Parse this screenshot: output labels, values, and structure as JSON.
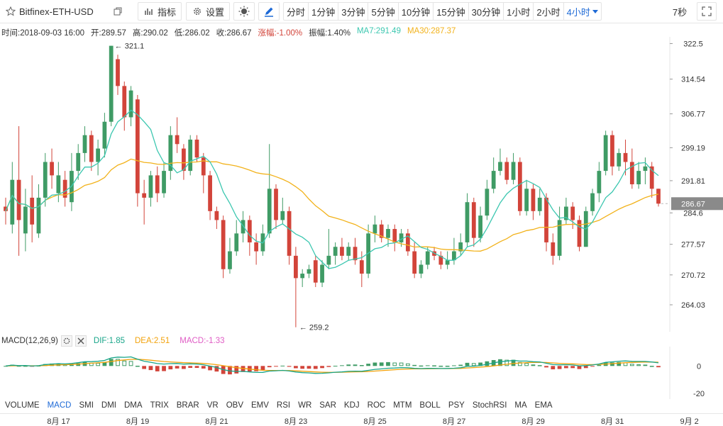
{
  "toolbar": {
    "symbol": "Bitfinex-ETH-USD",
    "indicator_label": "指标",
    "settings_label": "设置",
    "intervals": [
      "分时",
      "1分钟",
      "3分钟",
      "5分钟",
      "10分钟",
      "15分钟",
      "30分钟",
      "1小时",
      "2小时",
      "4小时"
    ],
    "active_interval": "4小时",
    "countdown": "7秒"
  },
  "info": {
    "time": "时间:2018-09-03 16:00",
    "open": "开:289.57",
    "high": "高:290.02",
    "low": "低:286.02",
    "close": "收:286.67",
    "change": "涨幅:-1.00%",
    "amplitude": "振幅:1.40%",
    "ma7": "MA7:291.49",
    "ma30": "MA30:287.37"
  },
  "colors": {
    "up": "#3f9b65",
    "down": "#d2443a",
    "ma7": "#3cc7b0",
    "ma30": "#f2b21b",
    "dif": "#17a589",
    "dea": "#f2a20b",
    "macd": "#e05cc5",
    "accent": "#1e6ad6"
  },
  "price_axis": {
    "ticks": [
      "322.5",
      "314.54",
      "306.77",
      "299.19",
      "291.81",
      "284.6",
      "277.57",
      "270.72",
      "264.03"
    ],
    "current": "286.67",
    "max_label": "321.1",
    "min_label": "259.2"
  },
  "macd": {
    "title": "MACD(12,26,9)",
    "dif": "DIF:1.85",
    "dea": "DEA:2.51",
    "macd": "MACD:-1.33",
    "ticks": [
      "0",
      "-20"
    ]
  },
  "indicators": [
    "VOLUME",
    "MACD",
    "SMI",
    "DMI",
    "DMA",
    "TRIX",
    "BRAR",
    "VR",
    "OBV",
    "EMV",
    "RSI",
    "WR",
    "SAR",
    "KDJ",
    "ROC",
    "MTM",
    "BOLL",
    "PSY",
    "StochRSI",
    "MA",
    "EMA"
  ],
  "active_indicator": "MACD",
  "dates": [
    "8月 17",
    "8月 19",
    "8月 21",
    "8月 23",
    "8月 25",
    "8月 27",
    "8月 29",
    "8月 31",
    "9月 2"
  ],
  "chart_data": {
    "type": "candlestick",
    "title": "Bitfinex-ETH-USD",
    "interval": "4小时",
    "ylim": [
      258,
      324
    ],
    "candles": [
      {
        "o": 286,
        "c": 285,
        "h": 288,
        "l": 282
      },
      {
        "o": 282,
        "c": 292,
        "h": 296,
        "l": 280
      },
      {
        "o": 292,
        "c": 283,
        "h": 304,
        "l": 275
      },
      {
        "o": 280,
        "c": 286,
        "h": 290,
        "l": 276
      },
      {
        "o": 288,
        "c": 282,
        "h": 293,
        "l": 278
      },
      {
        "o": 280,
        "c": 288,
        "h": 291,
        "l": 279
      },
      {
        "o": 288,
        "c": 296,
        "h": 298,
        "l": 286
      },
      {
        "o": 296,
        "c": 293,
        "h": 299,
        "l": 290
      },
      {
        "o": 289,
        "c": 293,
        "h": 296,
        "l": 287
      },
      {
        "o": 292,
        "c": 288,
        "h": 294,
        "l": 286
      },
      {
        "o": 287,
        "c": 294,
        "h": 298,
        "l": 285
      },
      {
        "o": 294,
        "c": 298,
        "h": 300,
        "l": 292
      },
      {
        "o": 298,
        "c": 302,
        "h": 304,
        "l": 296
      },
      {
        "o": 302,
        "c": 296,
        "h": 303,
        "l": 294
      },
      {
        "o": 296,
        "c": 299,
        "h": 301,
        "l": 293
      },
      {
        "o": 299,
        "c": 305,
        "h": 307,
        "l": 297
      },
      {
        "o": 305,
        "c": 322,
        "h": 322,
        "l": 304
      },
      {
        "o": 319,
        "c": 313,
        "h": 320,
        "l": 311
      },
      {
        "o": 313,
        "c": 306,
        "h": 314,
        "l": 303
      },
      {
        "o": 306,
        "c": 312,
        "h": 313,
        "l": 304
      },
      {
        "o": 310,
        "c": 289,
        "h": 311,
        "l": 286
      },
      {
        "o": 289,
        "c": 288,
        "h": 292,
        "l": 282
      },
      {
        "o": 288,
        "c": 293,
        "h": 294,
        "l": 286
      },
      {
        "o": 293,
        "c": 289,
        "h": 295,
        "l": 287
      },
      {
        "o": 289,
        "c": 294,
        "h": 296,
        "l": 288
      },
      {
        "o": 294,
        "c": 302,
        "h": 304,
        "l": 292
      },
      {
        "o": 302,
        "c": 300,
        "h": 306,
        "l": 298
      },
      {
        "o": 299,
        "c": 294,
        "h": 300,
        "l": 292
      },
      {
        "o": 294,
        "c": 301,
        "h": 302,
        "l": 293
      },
      {
        "o": 301,
        "c": 297,
        "h": 302,
        "l": 296
      },
      {
        "o": 297,
        "c": 293,
        "h": 298,
        "l": 289
      },
      {
        "o": 293,
        "c": 285,
        "h": 294,
        "l": 283
      },
      {
        "o": 285,
        "c": 283,
        "h": 286,
        "l": 281
      },
      {
        "o": 283,
        "c": 272,
        "h": 284,
        "l": 270
      },
      {
        "o": 272,
        "c": 276,
        "h": 279,
        "l": 271
      },
      {
        "o": 276,
        "c": 280,
        "h": 283,
        "l": 275
      },
      {
        "o": 280,
        "c": 283,
        "h": 285,
        "l": 278
      },
      {
        "o": 283,
        "c": 278,
        "h": 284,
        "l": 275
      },
      {
        "o": 278,
        "c": 276,
        "h": 280,
        "l": 273
      },
      {
        "o": 276,
        "c": 280,
        "h": 282,
        "l": 275
      },
      {
        "o": 280,
        "c": 290,
        "h": 300,
        "l": 279
      },
      {
        "o": 290,
        "c": 283,
        "h": 291,
        "l": 281
      },
      {
        "o": 283,
        "c": 285,
        "h": 288,
        "l": 282
      },
      {
        "o": 285,
        "c": 275,
        "h": 286,
        "l": 273
      },
      {
        "o": 275,
        "c": 270,
        "h": 277,
        "l": 259
      },
      {
        "o": 270,
        "c": 271,
        "h": 272,
        "l": 268
      },
      {
        "o": 271,
        "c": 272,
        "h": 273,
        "l": 270
      },
      {
        "o": 274,
        "c": 269,
        "h": 275,
        "l": 268
      },
      {
        "o": 269,
        "c": 273,
        "h": 274,
        "l": 268
      },
      {
        "o": 273,
        "c": 275,
        "h": 281,
        "l": 272
      },
      {
        "o": 275,
        "c": 277,
        "h": 278,
        "l": 273
      },
      {
        "o": 277,
        "c": 275,
        "h": 279,
        "l": 274
      },
      {
        "o": 275,
        "c": 277,
        "h": 278,
        "l": 274
      },
      {
        "o": 277,
        "c": 274,
        "h": 279,
        "l": 273
      },
      {
        "o": 274,
        "c": 271,
        "h": 276,
        "l": 268
      },
      {
        "o": 271,
        "c": 280,
        "h": 282,
        "l": 270
      },
      {
        "o": 280,
        "c": 282,
        "h": 284,
        "l": 278
      },
      {
        "o": 282,
        "c": 279,
        "h": 283,
        "l": 278
      },
      {
        "o": 279,
        "c": 281,
        "h": 282,
        "l": 277
      },
      {
        "o": 281,
        "c": 278,
        "h": 282,
        "l": 276
      },
      {
        "o": 278,
        "c": 280,
        "h": 281,
        "l": 277
      },
      {
        "o": 280,
        "c": 276,
        "h": 281,
        "l": 275
      },
      {
        "o": 276,
        "c": 271,
        "h": 278,
        "l": 270
      },
      {
        "o": 271,
        "c": 273,
        "h": 274,
        "l": 270
      },
      {
        "o": 273,
        "c": 276,
        "h": 277,
        "l": 272
      },
      {
        "o": 276,
        "c": 275,
        "h": 277,
        "l": 274
      },
      {
        "o": 275,
        "c": 273,
        "h": 276,
        "l": 272
      },
      {
        "o": 273,
        "c": 274,
        "h": 276,
        "l": 272
      },
      {
        "o": 274,
        "c": 276,
        "h": 279,
        "l": 273
      },
      {
        "o": 276,
        "c": 278,
        "h": 280,
        "l": 275
      },
      {
        "o": 278,
        "c": 287,
        "h": 289,
        "l": 277
      },
      {
        "o": 287,
        "c": 279,
        "h": 288,
        "l": 277
      },
      {
        "o": 279,
        "c": 284,
        "h": 286,
        "l": 278
      },
      {
        "o": 284,
        "c": 290,
        "h": 292,
        "l": 283
      },
      {
        "o": 290,
        "c": 294,
        "h": 297,
        "l": 289
      },
      {
        "o": 294,
        "c": 296,
        "h": 299,
        "l": 293
      },
      {
        "o": 296,
        "c": 292,
        "h": 297,
        "l": 291
      },
      {
        "o": 292,
        "c": 296,
        "h": 298,
        "l": 291
      },
      {
        "o": 296,
        "c": 285,
        "h": 297,
        "l": 284
      },
      {
        "o": 285,
        "c": 290,
        "h": 292,
        "l": 284
      },
      {
        "o": 290,
        "c": 285,
        "h": 291,
        "l": 283
      },
      {
        "o": 285,
        "c": 288,
        "h": 290,
        "l": 284
      },
      {
        "o": 288,
        "c": 278,
        "h": 289,
        "l": 276
      },
      {
        "o": 278,
        "c": 275,
        "h": 280,
        "l": 273
      },
      {
        "o": 275,
        "c": 283,
        "h": 286,
        "l": 274
      },
      {
        "o": 283,
        "c": 286,
        "h": 288,
        "l": 282
      },
      {
        "o": 286,
        "c": 283,
        "h": 287,
        "l": 281
      },
      {
        "o": 283,
        "c": 277,
        "h": 284,
        "l": 276
      },
      {
        "o": 277,
        "c": 285,
        "h": 286,
        "l": 277
      },
      {
        "o": 285,
        "c": 289,
        "h": 290,
        "l": 284
      },
      {
        "o": 289,
        "c": 294,
        "h": 296,
        "l": 287
      },
      {
        "o": 294,
        "c": 302,
        "h": 303,
        "l": 293
      },
      {
        "o": 302,
        "c": 295,
        "h": 303,
        "l": 293
      },
      {
        "o": 295,
        "c": 298,
        "h": 299,
        "l": 294
      },
      {
        "o": 298,
        "c": 296,
        "h": 301,
        "l": 293
      },
      {
        "o": 296,
        "c": 291,
        "h": 299,
        "l": 290
      },
      {
        "o": 291,
        "c": 294,
        "h": 296,
        "l": 290
      },
      {
        "o": 294,
        "c": 295,
        "h": 297,
        "l": 291
      },
      {
        "o": 295,
        "c": 290,
        "h": 296,
        "l": 288
      },
      {
        "o": 290,
        "c": 286.67,
        "h": 290.02,
        "l": 286.02
      }
    ]
  }
}
